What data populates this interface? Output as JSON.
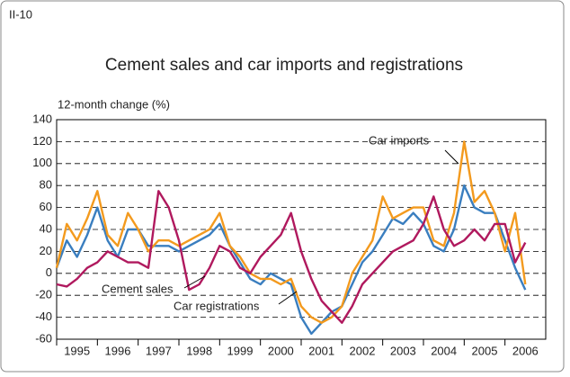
{
  "chart_data": {
    "type": "line",
    "figure_label": "II-10",
    "title": "Cement sales and car imports and registrations",
    "y_axis_label": "12-month change (%)",
    "xlim": [
      1995,
      2007
    ],
    "xticks": [
      {
        "value": 1995.5,
        "label": "1995"
      },
      {
        "value": 1996.5,
        "label": "1996"
      },
      {
        "value": 1997.5,
        "label": "1997"
      },
      {
        "value": 1998.5,
        "label": "1998"
      },
      {
        "value": 1999.5,
        "label": "1999"
      },
      {
        "value": 2000.5,
        "label": "2000"
      },
      {
        "value": 2001.5,
        "label": "2001"
      },
      {
        "value": 2002.5,
        "label": "2002"
      },
      {
        "value": 2003.5,
        "label": "2003"
      },
      {
        "value": 2004.5,
        "label": "2004"
      },
      {
        "value": 2005.5,
        "label": "2005"
      },
      {
        "value": 2006.5,
        "label": "2006"
      }
    ],
    "ylim": [
      -60,
      140
    ],
    "yticks": [
      -60,
      -40,
      -20,
      0,
      20,
      40,
      60,
      80,
      100,
      120,
      140
    ],
    "grid": true,
    "x": [
      1995,
      1995.25,
      1995.5,
      1995.75,
      1996,
      1996.25,
      1996.5,
      1996.75,
      1997,
      1997.25,
      1997.5,
      1997.75,
      1998,
      1998.25,
      1998.5,
      1998.75,
      1999,
      1999.25,
      1999.5,
      1999.75,
      2000,
      2000.25,
      2000.5,
      2000.75,
      2001,
      2001.25,
      2001.5,
      2001.75,
      2002,
      2002.25,
      2002.5,
      2002.75,
      2003,
      2003.25,
      2003.5,
      2003.75,
      2004,
      2004.25,
      2004.5,
      2004.75,
      2005,
      2005.25,
      2005.5,
      2005.75,
      2006,
      2006.25,
      2006.5
    ],
    "series": [
      {
        "name": "Cement sales",
        "color": "#3a7ebf",
        "values": [
          5,
          30,
          15,
          35,
          60,
          30,
          15,
          40,
          40,
          25,
          25,
          25,
          20,
          25,
          30,
          35,
          45,
          25,
          10,
          -5,
          -10,
          0,
          -5,
          -10,
          -40,
          -55,
          -45,
          -35,
          -30,
          -10,
          10,
          20,
          35,
          50,
          45,
          55,
          45,
          25,
          20,
          40,
          80,
          60,
          55,
          55,
          30,
          5,
          -15
        ]
      },
      {
        "name": "Car imports",
        "color": "#f39a1e",
        "values": [
          5,
          45,
          30,
          50,
          75,
          35,
          25,
          55,
          40,
          20,
          30,
          30,
          25,
          30,
          35,
          40,
          55,
          25,
          15,
          0,
          -5,
          -5,
          -10,
          -5,
          -30,
          -40,
          -45,
          -40,
          -30,
          0,
          15,
          30,
          70,
          50,
          55,
          60,
          60,
          30,
          25,
          55,
          120,
          65,
          75,
          55,
          20,
          55,
          -10
        ]
      },
      {
        "name": "Car registrations",
        "color": "#b0195e",
        "values": [
          -10,
          -12,
          -5,
          5,
          10,
          20,
          15,
          10,
          10,
          5,
          75,
          60,
          30,
          -15,
          -10,
          5,
          25,
          20,
          5,
          0,
          15,
          25,
          35,
          55,
          20,
          -5,
          -25,
          -35,
          -45,
          -30,
          -10,
          0,
          10,
          20,
          25,
          30,
          45,
          70,
          40,
          25,
          30,
          40,
          30,
          45,
          45,
          10,
          28
        ]
      }
    ]
  }
}
